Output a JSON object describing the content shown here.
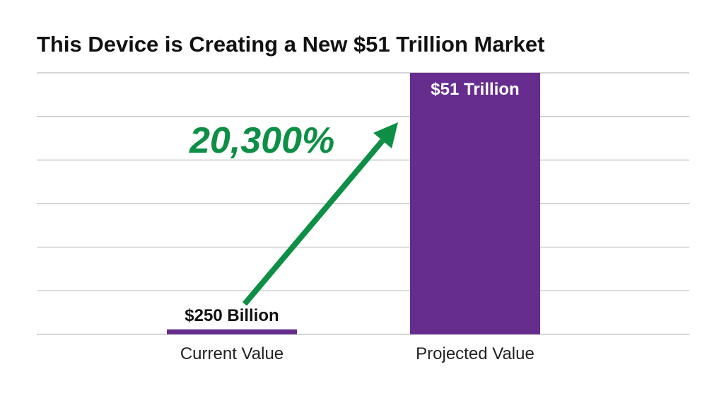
{
  "chart_data": {
    "type": "bar",
    "title": "This Device is Creating a New $51 Trillion Market",
    "categories": [
      "Current Value",
      "Projected Value"
    ],
    "values": [
      0.25,
      51
    ],
    "value_labels": [
      "$250 Billion",
      "$51 Trillion"
    ],
    "units": "Trillion USD",
    "ylim": [
      0,
      51
    ],
    "grid": true,
    "gridlines_count": 6,
    "annotation": {
      "text": "20,300%",
      "arrow_from_category": "Current Value",
      "arrow_to_category": "Projected Value"
    },
    "colors": {
      "bar": "#662d8f",
      "annotation": "#0d8f45",
      "grid": "#bdbdbd",
      "title": "#111111",
      "label_dark": "#111111",
      "label_light": "#ffffff"
    }
  }
}
